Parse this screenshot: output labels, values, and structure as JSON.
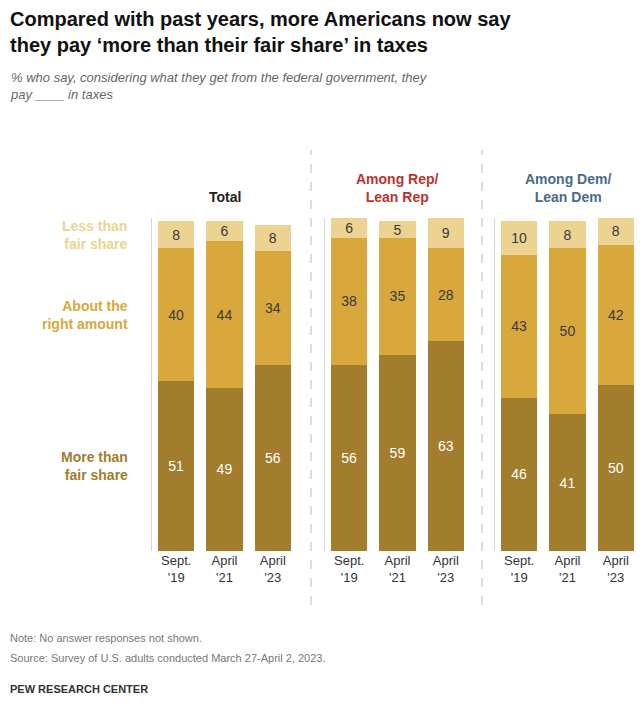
{
  "title": "Compared with past years, more Americans now say they pay ‘more than their fair share’ in taxes",
  "subtitle": "% who say, considering what they get from the federal government, they pay ____ in taxes",
  "note": "Note: No answer responses not shown.",
  "source": "Source: Survey of U.S. adults conducted March 27-April 2, 2023.",
  "credit": "PEW RESEARCH CENTER",
  "chart_data": [
    {
      "type": "bar",
      "title": "Total",
      "stacked": true,
      "data_labels": true,
      "tick_labels": "x",
      "ylim": [
        0,
        100
      ],
      "categories": [
        "Sept. '19",
        "April '21",
        "April '23"
      ],
      "series": [
        {
          "name": "More than fair share",
          "color": "#a17d2d",
          "values": [
            51,
            49,
            56
          ]
        },
        {
          "name": "About the right amount",
          "color": "#d8a83d",
          "values": [
            40,
            44,
            34
          ]
        },
        {
          "name": "Less than fair share",
          "color": "#ecd391",
          "values": [
            8,
            6,
            8
          ]
        }
      ]
    },
    {
      "type": "bar",
      "title": "Among Rep/Lean Rep",
      "stacked": true,
      "data_labels": true,
      "tick_labels": "x",
      "ylim": [
        0,
        100
      ],
      "categories": [
        "Sept. '19",
        "April '21",
        "April '23"
      ],
      "series": [
        {
          "name": "More than fair share",
          "color": "#a17d2d",
          "values": [
            56,
            59,
            63
          ]
        },
        {
          "name": "About the right amount",
          "color": "#d8a83d",
          "values": [
            38,
            35,
            28
          ]
        },
        {
          "name": "Less than fair share",
          "color": "#ecd391",
          "values": [
            6,
            5,
            9
          ]
        }
      ]
    },
    {
      "type": "bar",
      "title": "Among Dem/Lean Dem",
      "stacked": true,
      "data_labels": true,
      "tick_labels": "x",
      "ylim": [
        0,
        100
      ],
      "categories": [
        "Sept. '19",
        "April '21",
        "April '23"
      ],
      "series": [
        {
          "name": "More than fair share",
          "color": "#a17d2d",
          "values": [
            46,
            41,
            50
          ]
        },
        {
          "name": "About the right amount",
          "color": "#d8a83d",
          "values": [
            43,
            50,
            42
          ]
        },
        {
          "name": "Less than fair share",
          "color": "#ecd391",
          "values": [
            10,
            8,
            8
          ]
        }
      ]
    }
  ]
}
